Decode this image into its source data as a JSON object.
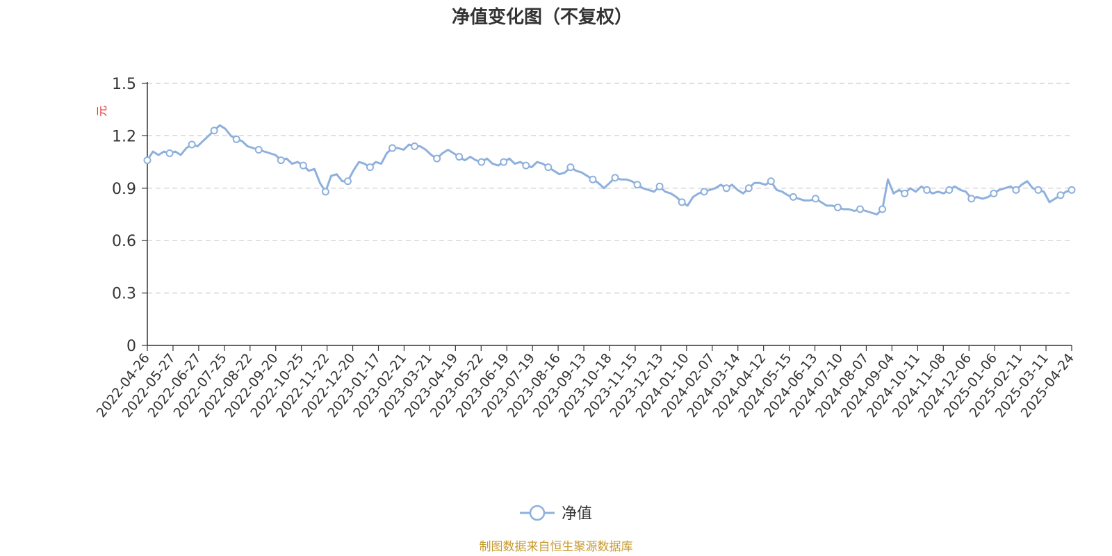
{
  "chart_data": {
    "type": "line",
    "title": "净值变化图（不复权）",
    "ylabel": "元",
    "ylim": [
      0,
      1.5
    ],
    "yticks": [
      "0",
      "0.3",
      "0.6",
      "0.9",
      "1.2",
      "1.5"
    ],
    "ytick_values": [
      0,
      0.3,
      0.6,
      0.9,
      1.2,
      1.5
    ],
    "grid": "horizontal dashed",
    "x_tick_labels": [
      "2022-04-26",
      "2022-05-27",
      "2022-06-27",
      "2022-07-25",
      "2022-08-22",
      "2022-09-20",
      "2022-10-25",
      "2022-11-22",
      "2022-12-20",
      "2023-01-17",
      "2023-02-21",
      "2023-03-21",
      "2023-04-19",
      "2023-05-22",
      "2023-06-19",
      "2023-07-19",
      "2023-08-16",
      "2023-09-13",
      "2023-10-18",
      "2023-11-15",
      "2023-12-13",
      "2024-01-10",
      "2024-02-07",
      "2024-03-14",
      "2024-04-12",
      "2024-05-15",
      "2024-06-13",
      "2024-07-10",
      "2024-08-07",
      "2024-09-04",
      "2024-10-11",
      "2024-11-08",
      "2024-12-06",
      "2025-01-06",
      "2025-02-11",
      "2025-03-11",
      "2025-04-24"
    ],
    "series": [
      {
        "name": "净值",
        "color": "#8eb0dc",
        "values": [
          1.06,
          1.11,
          1.09,
          1.11,
          1.1,
          1.11,
          1.09,
          1.13,
          1.15,
          1.14,
          1.17,
          1.2,
          1.23,
          1.26,
          1.24,
          1.2,
          1.18,
          1.17,
          1.14,
          1.13,
          1.12,
          1.11,
          1.1,
          1.09,
          1.06,
          1.07,
          1.04,
          1.05,
          1.03,
          1.0,
          1.01,
          0.93,
          0.88,
          0.97,
          0.98,
          0.94,
          0.94,
          1.0,
          1.05,
          1.04,
          1.02,
          1.05,
          1.04,
          1.1,
          1.13,
          1.13,
          1.12,
          1.15,
          1.14,
          1.14,
          1.12,
          1.09,
          1.07,
          1.1,
          1.12,
          1.1,
          1.08,
          1.06,
          1.08,
          1.06,
          1.05,
          1.07,
          1.04,
          1.03,
          1.05,
          1.07,
          1.04,
          1.05,
          1.03,
          1.02,
          1.05,
          1.04,
          1.02,
          1.0,
          0.98,
          0.99,
          1.02,
          1.0,
          0.99,
          0.97,
          0.95,
          0.93,
          0.9,
          0.93,
          0.96,
          0.95,
          0.95,
          0.94,
          0.92,
          0.9,
          0.89,
          0.88,
          0.91,
          0.88,
          0.87,
          0.85,
          0.82,
          0.8,
          0.85,
          0.87,
          0.88,
          0.89,
          0.9,
          0.92,
          0.9,
          0.92,
          0.89,
          0.87,
          0.9,
          0.93,
          0.93,
          0.92,
          0.94,
          0.89,
          0.88,
          0.86,
          0.85,
          0.84,
          0.83,
          0.83,
          0.84,
          0.82,
          0.8,
          0.8,
          0.79,
          0.78,
          0.78,
          0.77,
          0.78,
          0.77,
          0.76,
          0.75,
          0.78,
          0.95,
          0.87,
          0.89,
          0.87,
          0.9,
          0.88,
          0.91,
          0.89,
          0.87,
          0.88,
          0.87,
          0.89,
          0.91,
          0.89,
          0.88,
          0.84,
          0.85,
          0.84,
          0.85,
          0.87,
          0.89,
          0.9,
          0.91,
          0.89,
          0.92,
          0.94,
          0.9,
          0.89,
          0.88,
          0.82,
          0.84,
          0.86,
          0.88,
          0.89
        ]
      }
    ],
    "legend": {
      "position": "bottom-center",
      "entries": [
        "净值"
      ]
    },
    "source_note": "制图数据来自恒生聚源数据库"
  },
  "colors": {
    "title": "#333333",
    "axis": "#333333",
    "grid": "#cccccc",
    "unit_label": "#e83030",
    "line": "#8eb0dc",
    "source": "#c89a2e"
  }
}
